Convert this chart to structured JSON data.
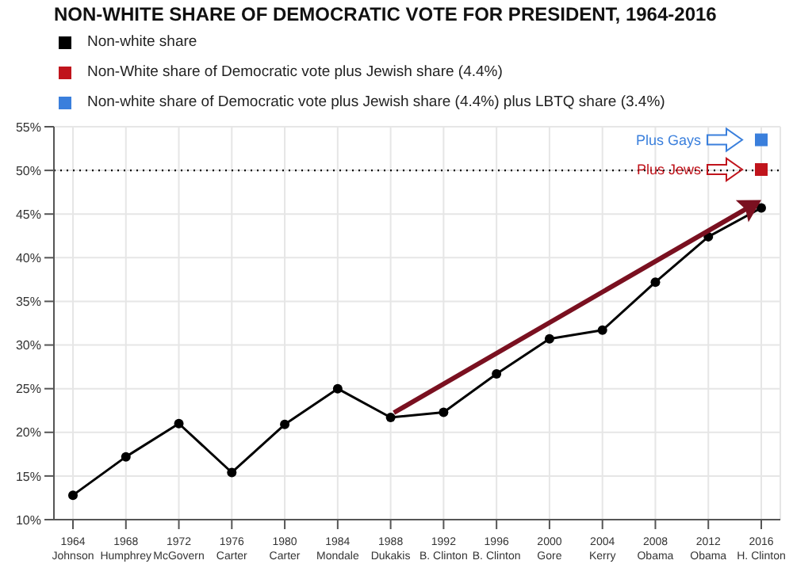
{
  "chart_data": {
    "type": "line",
    "title": "NON-WHITE SHARE OF DEMOCRATIC VOTE FOR PRESIDENT, 1964-2016",
    "categories": [
      "1964\nJohnson",
      "1968\nHumphrey",
      "1972\nMcGovern",
      "1976\nCarter",
      "1980\nCarter",
      "1984\nMondale",
      "1988\nDukakis",
      "1992\nB. Clinton",
      "1996\nB. Clinton",
      "2000\nGore",
      "2004\nKerry",
      "2008\nObama",
      "2012\nObama",
      "2016\nH. Clinton"
    ],
    "series": [
      {
        "name": "Non-white share",
        "color": "#000000",
        "values": [
          12.8,
          17.2,
          21.0,
          15.4,
          20.9,
          25.0,
          21.7,
          22.3,
          26.7,
          30.7,
          31.7,
          37.2,
          42.4,
          45.7
        ]
      },
      {
        "name": "Non-White share of Democratic vote plus Jewish share (4.4%)",
        "type": "scatter",
        "marker": "square",
        "color": "#c0141c",
        "values": [
          null,
          null,
          null,
          null,
          null,
          null,
          null,
          null,
          null,
          null,
          null,
          null,
          null,
          50.1
        ]
      },
      {
        "name": "Non-white share of Democratic vote plus Jewish share (4.4%) plus LBTQ share (3.4%)",
        "type": "scatter",
        "marker": "square",
        "color": "#3a7fdc",
        "values": [
          null,
          null,
          null,
          null,
          null,
          null,
          null,
          null,
          null,
          null,
          null,
          null,
          null,
          53.5
        ]
      }
    ],
    "ylim": [
      10,
      55
    ],
    "yticks": [
      {
        "value": 10,
        "label": "10%"
      },
      {
        "value": 15,
        "label": "15%"
      },
      {
        "value": 20,
        "label": "20%"
      },
      {
        "value": 25,
        "label": "25%"
      },
      {
        "value": 30,
        "label": "30%"
      },
      {
        "value": 35,
        "label": "35%"
      },
      {
        "value": 40,
        "label": "40%"
      },
      {
        "value": 45,
        "label": "45%"
      },
      {
        "value": 50,
        "label": "50%"
      },
      {
        "value": 55,
        "label": "55%"
      }
    ],
    "ref_lines": [
      {
        "axis": "y",
        "value": 50,
        "line_style": "dotted",
        "color": "#000000"
      }
    ],
    "annotations": [
      "Plus Gays",
      "Plus Jews"
    ],
    "grid": true,
    "legend": "top left",
    "marker": "circle"
  }
}
